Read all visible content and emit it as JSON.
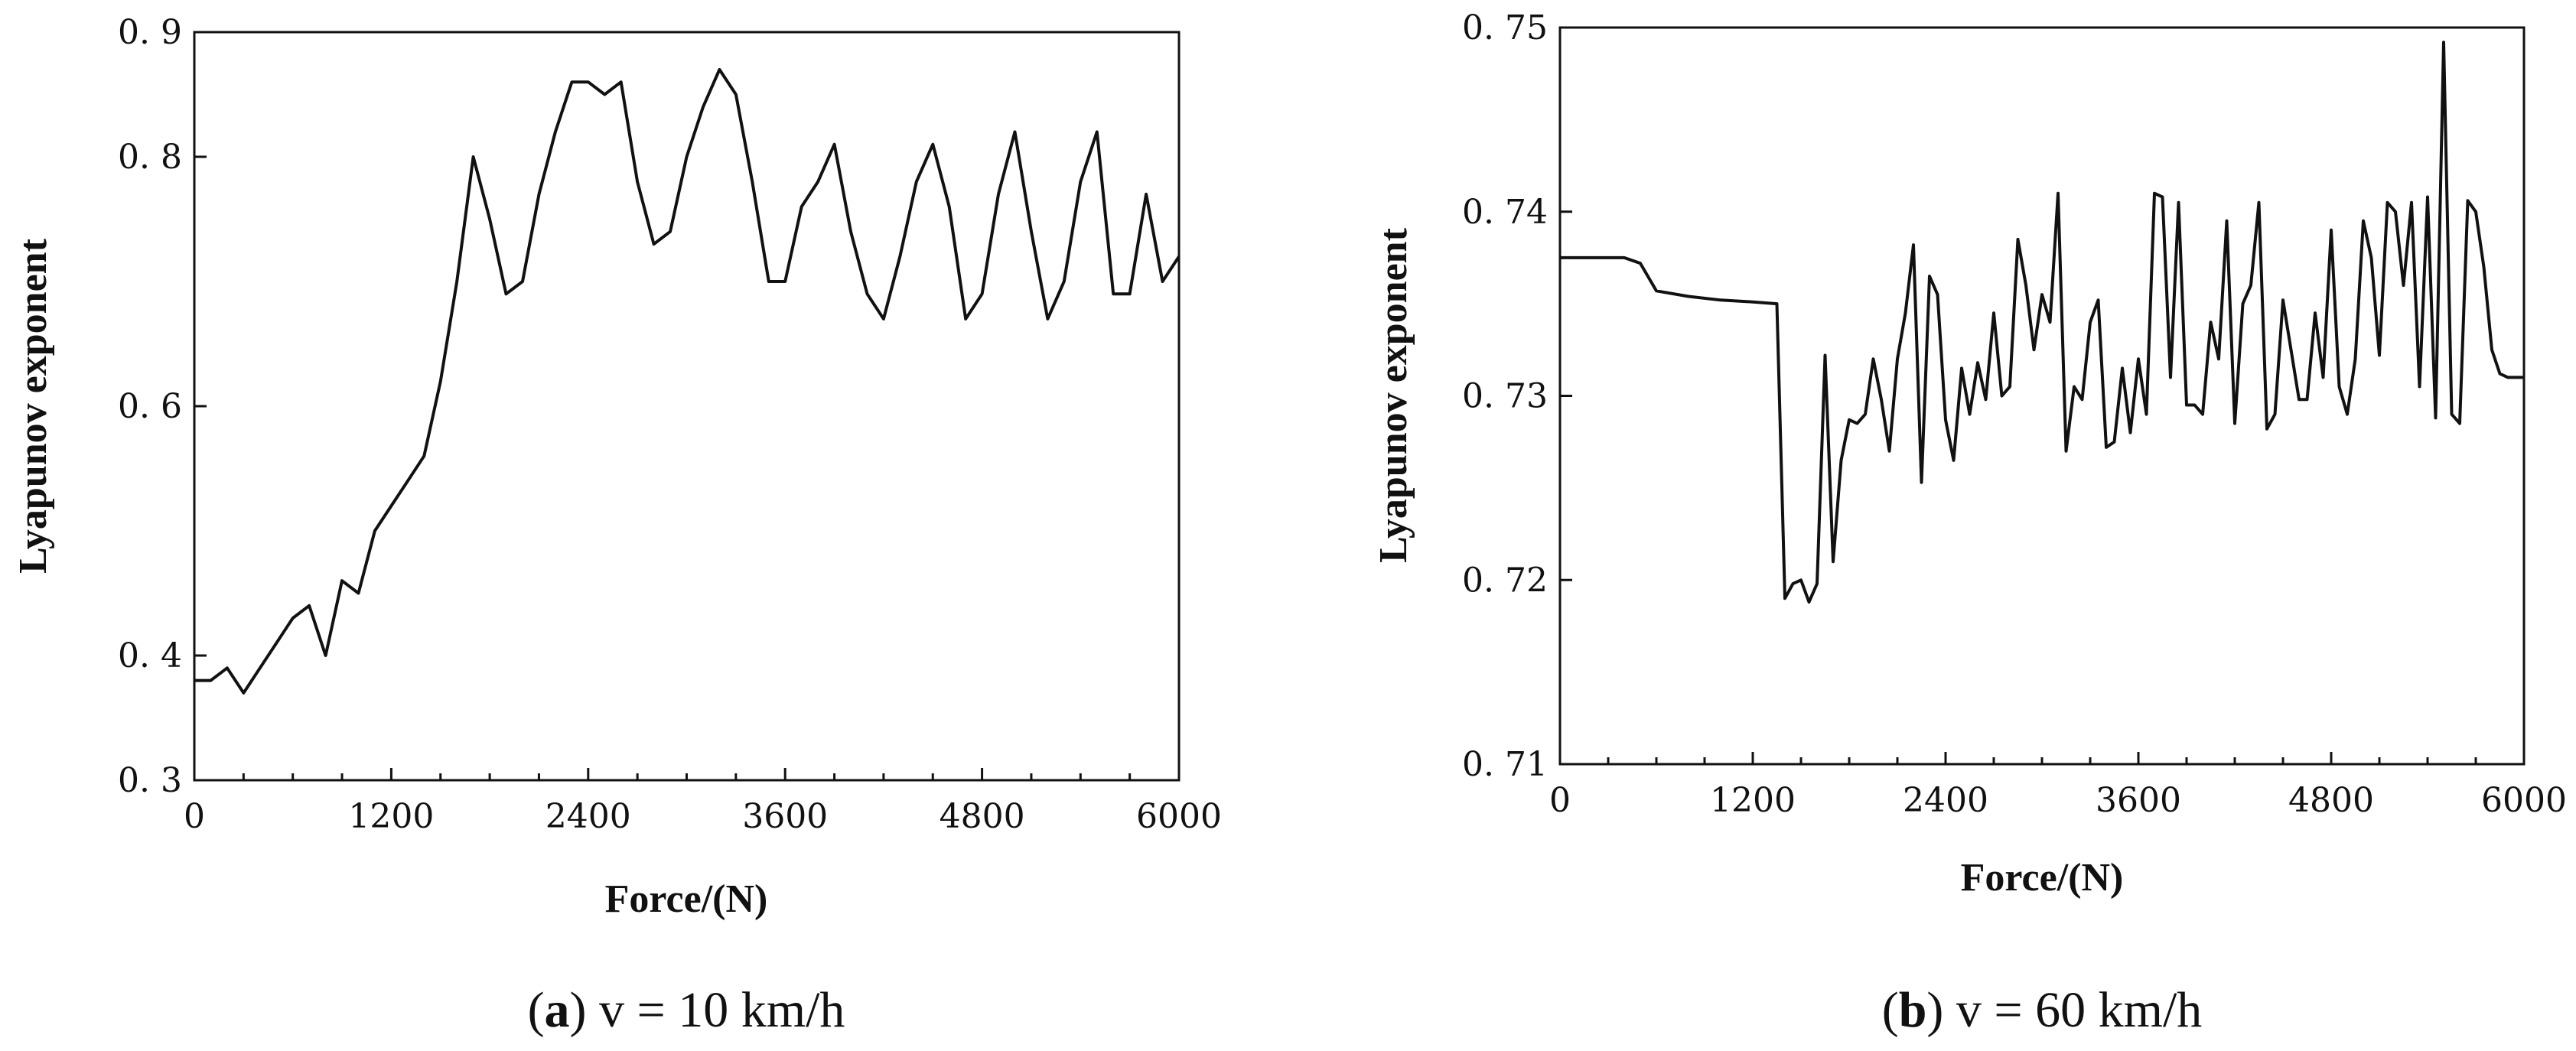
{
  "chart_data": [
    {
      "type": "line",
      "caption_letter": "a",
      "caption_text": " v = 10 km/h",
      "xlabel": "Force/(N)",
      "ylabel": "Lyapunov exponent",
      "xlim": [
        0,
        6000
      ],
      "ylim": [
        0.3,
        0.9
      ],
      "xticks": [
        0,
        1200,
        2400,
        3600,
        4800,
        6000
      ],
      "xtick_labels": [
        "0",
        "1200",
        "2400",
        "3600",
        "4800",
        "6000"
      ],
      "yticks": [
        0.3,
        0.4,
        0.6,
        0.8,
        0.9
      ],
      "ytick_labels": [
        "0. 3",
        "0. 4",
        "0. 6",
        "0. 8",
        "0. 9"
      ],
      "grid": false,
      "x": [
        0,
        100,
        200,
        300,
        400,
        500,
        600,
        700,
        800,
        900,
        1000,
        1100,
        1200,
        1300,
        1400,
        1500,
        1600,
        1700,
        1800,
        1900,
        2000,
        2100,
        2200,
        2300,
        2400,
        2500,
        2600,
        2700,
        2800,
        2900,
        3000,
        3100,
        3200,
        3300,
        3400,
        3500,
        3600,
        3700,
        3800,
        3900,
        4000,
        4100,
        4200,
        4300,
        4400,
        4500,
        4600,
        4700,
        4800,
        4900,
        5000,
        5100,
        5200,
        5300,
        5400,
        5500,
        5600,
        5700,
        5800,
        5900,
        6000
      ],
      "y": [
        0.38,
        0.38,
        0.39,
        0.37,
        0.39,
        0.41,
        0.43,
        0.44,
        0.4,
        0.46,
        0.45,
        0.5,
        0.52,
        0.54,
        0.56,
        0.62,
        0.7,
        0.8,
        0.75,
        0.69,
        0.7,
        0.77,
        0.82,
        0.86,
        0.86,
        0.85,
        0.86,
        0.78,
        0.73,
        0.74,
        0.8,
        0.84,
        0.87,
        0.85,
        0.78,
        0.7,
        0.7,
        0.76,
        0.78,
        0.81,
        0.74,
        0.69,
        0.67,
        0.72,
        0.78,
        0.81,
        0.76,
        0.67,
        0.69,
        0.77,
        0.82,
        0.74,
        0.67,
        0.7,
        0.78,
        0.82,
        0.69,
        0.69,
        0.77,
        0.7,
        0.72
      ],
      "series_name": "v = 10 km/h"
    },
    {
      "type": "line",
      "caption_letter": "b",
      "caption_text": " v = 60 km/h",
      "xlabel": "Force/(N)",
      "ylabel": "Lyapunov exponent",
      "xlim": [
        0,
        6000
      ],
      "ylim": [
        0.71,
        0.75
      ],
      "xticks": [
        0,
        1200,
        2400,
        3600,
        4800,
        6000
      ],
      "xtick_labels": [
        "0",
        "1200",
        "2400",
        "3600",
        "4800",
        "6000"
      ],
      "yticks": [
        0.71,
        0.72,
        0.73,
        0.74,
        0.75
      ],
      "ytick_labels": [
        "0. 71",
        "0. 72",
        "0. 73",
        "0. 74",
        "0. 75"
      ],
      "grid": false,
      "x": [
        0,
        400,
        500,
        600,
        800,
        1000,
        1200,
        1350,
        1400,
        1450,
        1500,
        1550,
        1600,
        1650,
        1700,
        1750,
        1800,
        1850,
        1900,
        1950,
        2000,
        2050,
        2100,
        2150,
        2200,
        2250,
        2300,
        2350,
        2400,
        2450,
        2500,
        2550,
        2600,
        2650,
        2700,
        2750,
        2800,
        2850,
        2900,
        2950,
        3000,
        3050,
        3100,
        3150,
        3200,
        3250,
        3300,
        3350,
        3400,
        3450,
        3500,
        3550,
        3600,
        3650,
        3700,
        3750,
        3800,
        3850,
        3900,
        3950,
        4000,
        4050,
        4100,
        4150,
        4200,
        4250,
        4300,
        4350,
        4400,
        4450,
        4500,
        4550,
        4600,
        4650,
        4700,
        4750,
        4800,
        4850,
        4900,
        4950,
        5000,
        5050,
        5100,
        5150,
        5200,
        5250,
        5300,
        5350,
        5400,
        5450,
        5500,
        5550,
        5600,
        5650,
        5700,
        5750,
        5800,
        5850,
        5900,
        5950,
        6000
      ],
      "y": [
        0.7375,
        0.7375,
        0.7372,
        0.7357,
        0.7354,
        0.7352,
        0.7351,
        0.735,
        0.719,
        0.7198,
        0.72,
        0.7188,
        0.7198,
        0.7322,
        0.721,
        0.7265,
        0.7287,
        0.7285,
        0.729,
        0.732,
        0.7298,
        0.727,
        0.732,
        0.7345,
        0.7382,
        0.7253,
        0.7365,
        0.7355,
        0.7287,
        0.7265,
        0.7315,
        0.729,
        0.7318,
        0.7298,
        0.7345,
        0.73,
        0.7305,
        0.7385,
        0.736,
        0.7325,
        0.7355,
        0.734,
        0.741,
        0.727,
        0.7305,
        0.7298,
        0.734,
        0.7352,
        0.7272,
        0.7275,
        0.7315,
        0.728,
        0.732,
        0.729,
        0.741,
        0.7408,
        0.731,
        0.7405,
        0.7295,
        0.7295,
        0.729,
        0.734,
        0.732,
        0.7395,
        0.7285,
        0.735,
        0.736,
        0.7405,
        0.7282,
        0.729,
        0.7352,
        0.7325,
        0.7298,
        0.7298,
        0.7345,
        0.731,
        0.739,
        0.7305,
        0.729,
        0.732,
        0.7395,
        0.7375,
        0.7322,
        0.7405,
        0.74,
        0.736,
        0.7405,
        0.7305,
        0.7408,
        0.7288,
        0.7492,
        0.729,
        0.7285,
        0.7406,
        0.74,
        0.737,
        0.7325,
        0.7312,
        0.731,
        0.731,
        0.731
      ],
      "series_name": "v = 60 km/h"
    }
  ]
}
